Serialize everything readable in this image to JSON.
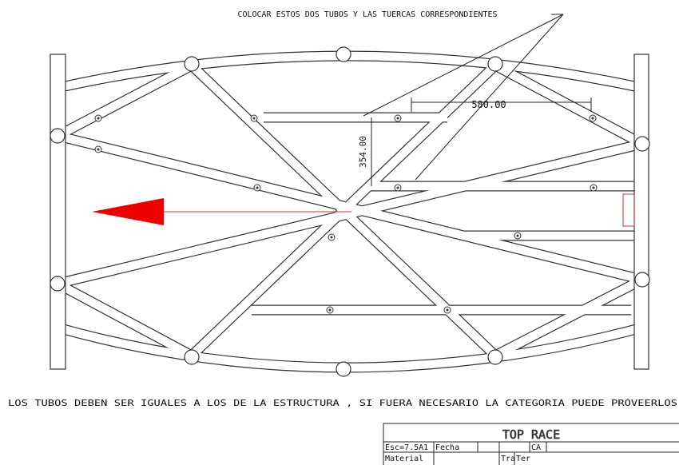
{
  "notes": {
    "top": "COLOCAR ESTOS DOS TUBOS Y LAS TUERCAS CORRESPONDIENTES",
    "bottom": "LOS TUBOS DEBEN SER IGUALES A LOS DE LA ESTRUCTURA , SI FUERA NECESARIO LA CATEGORIA PUEDE PROVEERLOS"
  },
  "dimensions": {
    "width": "580.00",
    "height": "354.00"
  },
  "title_block": {
    "title": "TOP RACE",
    "scale": "Esc=7.5A1",
    "date": "Fecha",
    "ca": "CA",
    "material": "Material",
    "tra": "Tra",
    "ter": "Ter"
  }
}
